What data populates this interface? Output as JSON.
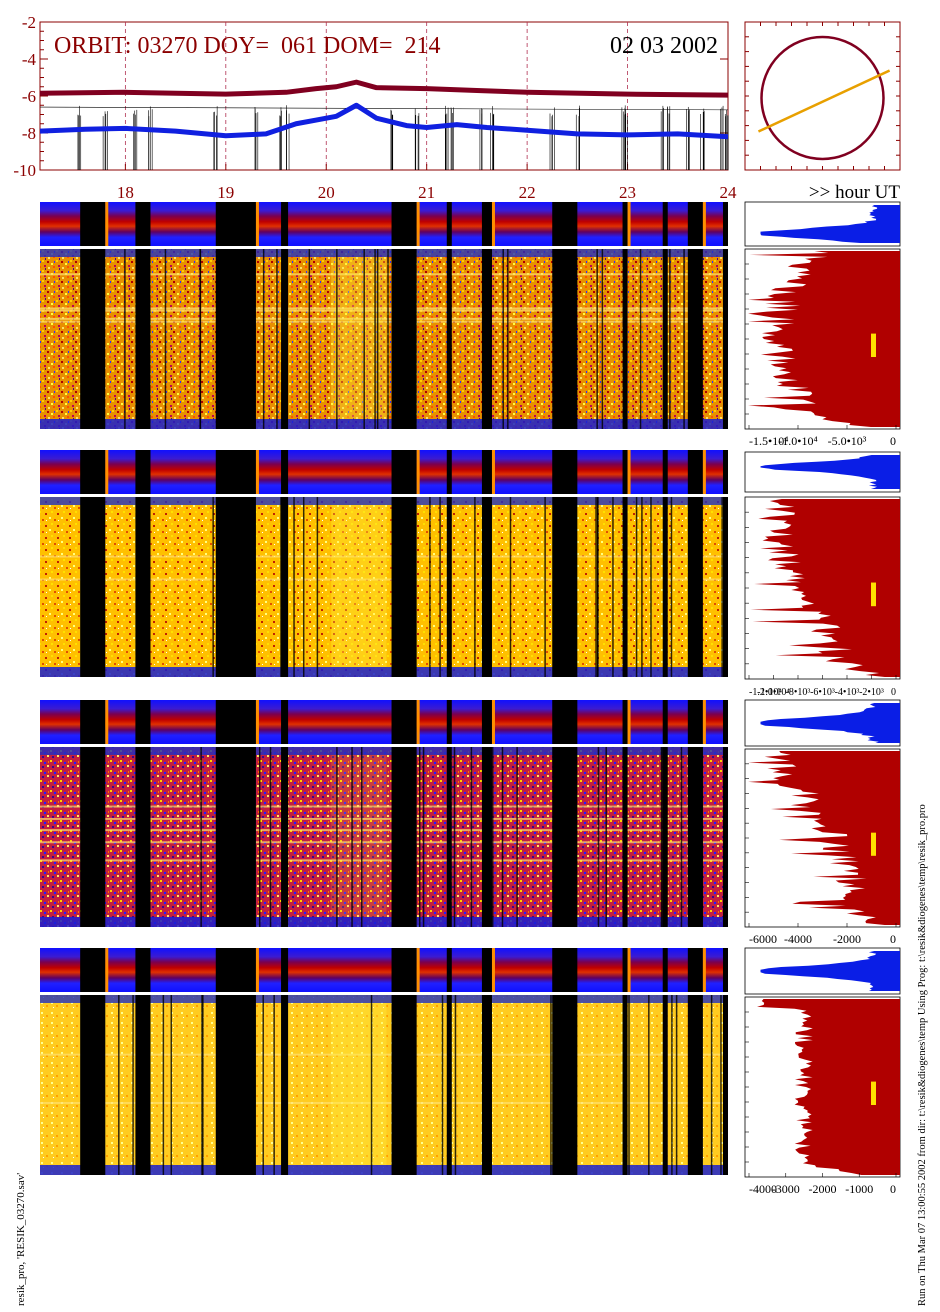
{
  "header": {
    "orbit_label": "ORBIT: 03270 DOY=  061 DOM=  214",
    "date_label": "02 03 2002",
    "hour_axis_label": ">> hour UT"
  },
  "footer": {
    "left_caption": "resik_pro, 'RESIK_03270.sav'",
    "right_caption": "Run on Thu Mar 07 13:00:55 2002   from dir: t:\\resik&diogenes\\temp Using Prog: t:\\resik&diogenes\\temp\\resik_pro.pro"
  },
  "colors": {
    "orbit_title": "#8b0000",
    "dark_red_curve": "#800020",
    "blue_curve": "#1020e0",
    "histogram_red": "#b00000",
    "histogram_blue": "#0a1ee6",
    "orbit_track": "#e8a000",
    "marker_yellow": "#ffe000"
  },
  "chart_data": [
    {
      "type": "line",
      "name": "orbit-timeseries",
      "title": "ORBIT: 03270 DOY=  061 DOM=  214",
      "xlim": [
        17.15,
        24
      ],
      "ylim": [
        -10,
        -2
      ],
      "yticks": [
        -10,
        -8,
        -6,
        -4,
        -2
      ],
      "xticks": [
        18,
        19,
        20,
        21,
        22,
        23,
        24
      ],
      "grid_x": [
        18,
        19,
        20,
        21,
        22,
        23
      ],
      "xlabel": ">> hour UT",
      "series": [
        {
          "color": "#800020",
          "x": [
            17.15,
            18,
            19,
            19.6,
            19.9,
            20.1,
            20.3,
            20.5,
            21,
            21.5,
            22,
            23,
            24
          ],
          "y": [
            -5.85,
            -5.8,
            -5.9,
            -5.8,
            -5.6,
            -5.5,
            -5.25,
            -5.55,
            -5.6,
            -5.7,
            -5.8,
            -5.9,
            -5.95
          ]
        },
        {
          "color": "#1020e0",
          "x": [
            17.15,
            17.6,
            18.0,
            18.5,
            19.0,
            19.4,
            19.7,
            19.9,
            20.1,
            20.3,
            20.5,
            20.8,
            21.0,
            21.3,
            21.6,
            22.0,
            22.5,
            23.0,
            23.5,
            24.0
          ],
          "y": [
            -7.9,
            -7.8,
            -7.75,
            -7.9,
            -8.15,
            -8.05,
            -7.5,
            -7.3,
            -7.1,
            -6.5,
            -7.2,
            -7.6,
            -7.7,
            -7.55,
            -7.7,
            -7.85,
            -8.05,
            -8.1,
            -8.05,
            -8.2
          ]
        }
      ]
    },
    {
      "type": "scatter",
      "name": "orbit-map",
      "title": "",
      "circle_radius": 1.0,
      "track": {
        "x": [
          -1.05,
          1.1
        ],
        "y": [
          -0.55,
          0.45
        ]
      }
    },
    {
      "type": "heatmap",
      "name": "spectrogram-channels",
      "xlim": [
        17.15,
        24
      ],
      "gaps": [
        [
          17.55,
          17.8
        ],
        [
          18.1,
          18.25
        ],
        [
          18.9,
          19.3
        ],
        [
          19.55,
          19.62
        ],
        [
          20.65,
          20.9
        ],
        [
          21.2,
          21.25
        ],
        [
          21.55,
          21.65
        ],
        [
          22.25,
          22.5
        ],
        [
          22.95,
          23.0
        ],
        [
          23.35,
          23.4
        ],
        [
          23.6,
          23.75
        ],
        [
          23.95,
          24.0
        ]
      ],
      "bright_band": [
        20.05,
        20.6
      ],
      "channels": [
        1,
        2,
        3,
        4
      ]
    },
    {
      "type": "area",
      "name": "histograms",
      "panels": [
        {
          "channel": 1,
          "xticks": [
            "-1.5•10⁴",
            "-1.0•10⁴",
            "-5.0•10³",
            "0"
          ],
          "xlim": [
            -16000,
            0
          ]
        },
        {
          "channel": 2,
          "xticks": [
            "-1.2•10⁴",
            "-1.0•10⁴",
            "-8•10³",
            "-6•10³",
            "-4•10³",
            "-2•10³",
            "0"
          ],
          "xlim": [
            -13000,
            0
          ]
        },
        {
          "channel": 3,
          "xticks": [
            "-6000",
            "-4000",
            "-2000",
            "0"
          ],
          "xlim": [
            -7800,
            0
          ]
        },
        {
          "channel": 4,
          "xticks": [
            "-4000",
            "-3000",
            "-2000",
            "-1000",
            "0"
          ],
          "xlim": [
            -4900,
            0
          ]
        }
      ]
    }
  ]
}
